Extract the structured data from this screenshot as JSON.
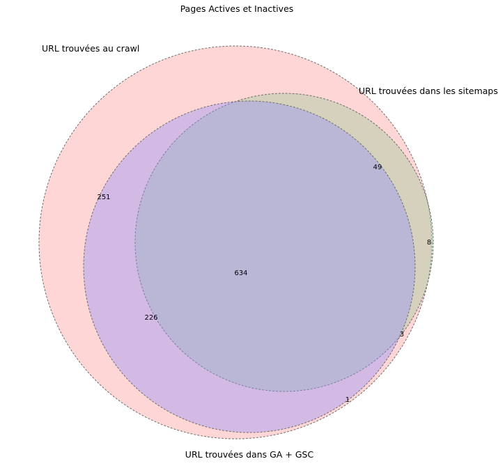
{
  "title": "Pages Actives et Inactives",
  "colors": {
    "crawl": "#ff9898",
    "sitemaps": "#98cb98",
    "ga_gsc": "#9090fd"
  },
  "sets": {
    "crawl": "URL trouvées au crawl",
    "sitemaps": "URL trouvées dans les sitemaps",
    "ga_gsc": "URL trouvées dans GA + GSC"
  },
  "regions": {
    "crawl_only": "251",
    "crawl_sitemaps": "49",
    "sitemaps_only": "8",
    "crawl_ga": "226",
    "all_three": "634",
    "sitemaps_ga": "3",
    "ga_only": "1"
  }
}
